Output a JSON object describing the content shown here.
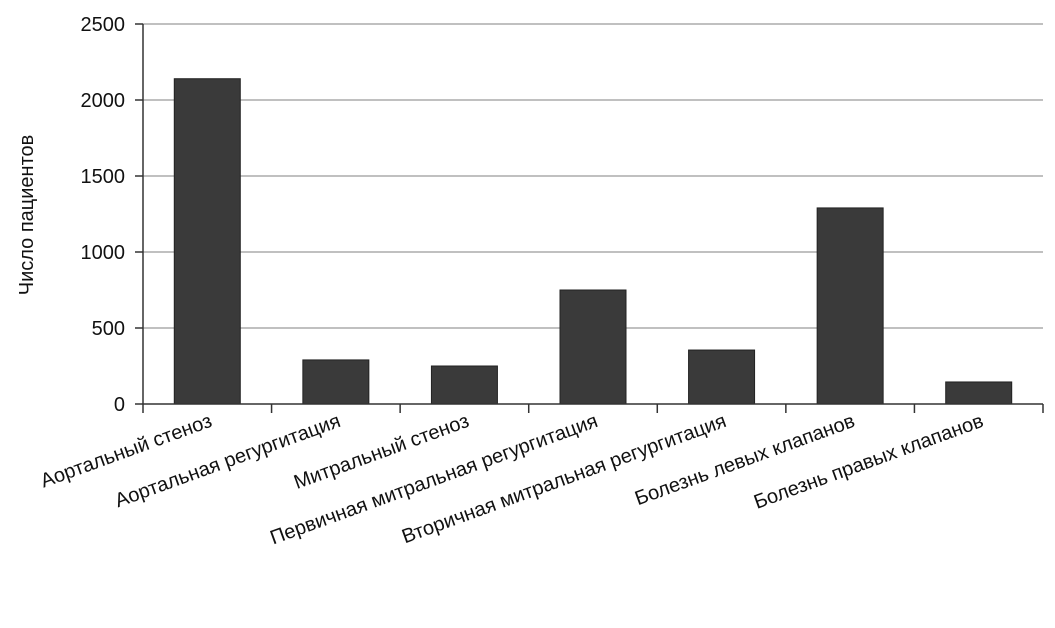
{
  "chart_data": {
    "type": "bar",
    "title": "",
    "xlabel": "",
    "ylabel": "Число пациентов",
    "categories": [
      "Аортальный стеноз",
      "Аортальная регургитация",
      "Митральный стеноз",
      "Первичная митральная регургитация",
      "Вторичная митральная регургитация",
      "Болезнь левых клапанов",
      "Болезнь правых клапанов"
    ],
    "values": [
      2140,
      290,
      250,
      750,
      355,
      1290,
      145
    ],
    "ylim": [
      0,
      2500
    ],
    "yticks": [
      0,
      500,
      1000,
      1500,
      2000,
      2500
    ],
    "grid": true,
    "bar_color": "#3a3a3a",
    "grid_color": "#9a9a9a",
    "axis_color": "#333333"
  }
}
